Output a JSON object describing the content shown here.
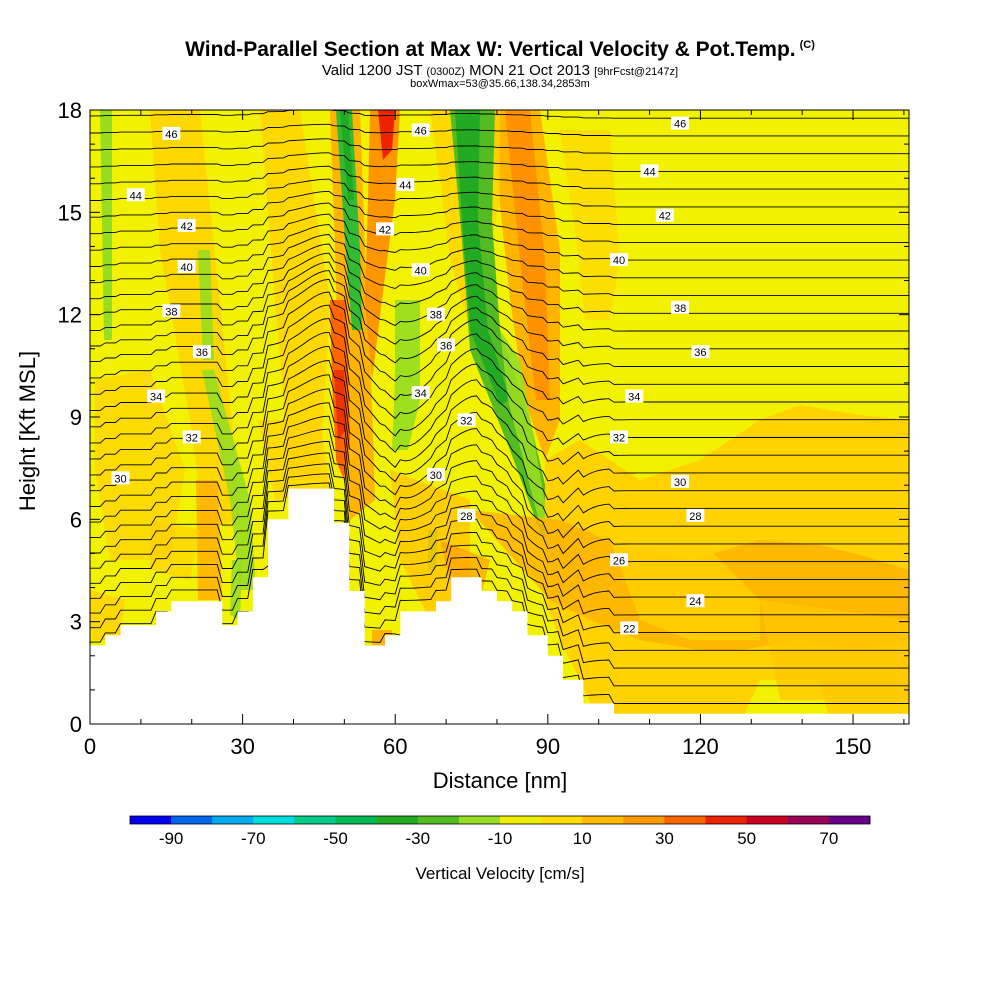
{
  "header": {
    "title": "Wind-Parallel Section at Max W: Vertical Velocity & Pot.Temp.",
    "copyright": "(C)",
    "valid_prefix": "Valid 1200 JST",
    "valid_zulu": "(0300Z)",
    "valid_date": "MON 21 Oct 2013",
    "forecast_info": "[9hrFcst@2147z]",
    "box_info": "boxWmax=53@35.66,138.34,2853m"
  },
  "chart_data": {
    "type": "heatmap",
    "xlabel": "Distance [nm]",
    "ylabel": "Height [Kft MSL]",
    "xlim": [
      0,
      161
    ],
    "ylim": [
      0,
      18
    ],
    "x_ticks": [
      0,
      30,
      60,
      90,
      120,
      150
    ],
    "y_ticks": [
      0,
      3,
      6,
      9,
      12,
      15,
      18
    ],
    "terrain": [
      [
        0,
        2.3
      ],
      [
        3,
        2.3
      ],
      [
        3,
        2.6
      ],
      [
        6,
        2.6
      ],
      [
        6,
        2.9
      ],
      [
        13,
        2.9
      ],
      [
        13,
        3.3
      ],
      [
        16,
        3.3
      ],
      [
        16,
        3.6
      ],
      [
        26,
        3.6
      ],
      [
        26,
        2.9
      ],
      [
        29,
        2.9
      ],
      [
        29,
        3.3
      ],
      [
        32,
        3.3
      ],
      [
        32,
        4.3
      ],
      [
        35,
        4.3
      ],
      [
        35,
        6.0
      ],
      [
        39,
        6.0
      ],
      [
        39,
        6.9
      ],
      [
        48,
        6.9
      ],
      [
        48,
        5.9
      ],
      [
        51,
        5.9
      ],
      [
        51,
        3.9
      ],
      [
        54,
        3.9
      ],
      [
        54,
        2.3
      ],
      [
        58,
        2.3
      ],
      [
        58,
        2.6
      ],
      [
        61,
        2.6
      ],
      [
        61,
        3.3
      ],
      [
        68,
        3.3
      ],
      [
        68,
        3.6
      ],
      [
        71,
        3.6
      ],
      [
        71,
        4.3
      ],
      [
        77,
        4.3
      ],
      [
        77,
        3.9
      ],
      [
        80,
        3.9
      ],
      [
        80,
        3.6
      ],
      [
        83,
        3.6
      ],
      [
        83,
        3.3
      ],
      [
        86,
        3.3
      ],
      [
        86,
        2.6
      ],
      [
        90,
        2.6
      ],
      [
        90,
        2.0
      ],
      [
        93,
        2.0
      ],
      [
        93,
        1.3
      ],
      [
        97,
        1.3
      ],
      [
        97,
        0.6
      ],
      [
        103,
        0.6
      ],
      [
        103,
        0.3
      ],
      [
        161,
        0.3
      ]
    ],
    "isentrope_labels": [
      {
        "text": "46",
        "x": 16,
        "y": 17.3
      },
      {
        "text": "44",
        "x": 9,
        "y": 15.5
      },
      {
        "text": "42",
        "x": 19,
        "y": 14.6
      },
      {
        "text": "40",
        "x": 19,
        "y": 13.4
      },
      {
        "text": "38",
        "x": 16,
        "y": 12.1
      },
      {
        "text": "36",
        "x": 22,
        "y": 10.9
      },
      {
        "text": "34",
        "x": 13,
        "y": 9.6
      },
      {
        "text": "32",
        "x": 20,
        "y": 8.4
      },
      {
        "text": "30",
        "x": 6,
        "y": 7.2
      },
      {
        "text": "46",
        "x": 65,
        "y": 17.4
      },
      {
        "text": "44",
        "x": 62,
        "y": 15.8
      },
      {
        "text": "42",
        "x": 58,
        "y": 14.5
      },
      {
        "text": "40",
        "x": 65,
        "y": 13.3
      },
      {
        "text": "38",
        "x": 68,
        "y": 12.0
      },
      {
        "text": "36",
        "x": 70,
        "y": 11.1
      },
      {
        "text": "34",
        "x": 65,
        "y": 9.7
      },
      {
        "text": "32",
        "x": 74,
        "y": 8.9
      },
      {
        "text": "30",
        "x": 68,
        "y": 7.3
      },
      {
        "text": "28",
        "x": 74,
        "y": 6.1
      },
      {
        "text": "46",
        "x": 116,
        "y": 17.6
      },
      {
        "text": "44",
        "x": 110,
        "y": 16.2
      },
      {
        "text": "42",
        "x": 113,
        "y": 14.9
      },
      {
        "text": "40",
        "x": 104,
        "y": 13.6
      },
      {
        "text": "38",
        "x": 116,
        "y": 12.2
      },
      {
        "text": "36",
        "x": 120,
        "y": 10.9
      },
      {
        "text": "34",
        "x": 107,
        "y": 9.6
      },
      {
        "text": "32",
        "x": 104,
        "y": 8.4
      },
      {
        "text": "30",
        "x": 116,
        "y": 7.1
      },
      {
        "text": "28",
        "x": 119,
        "y": 6.1
      },
      {
        "text": "26",
        "x": 104,
        "y": 4.8
      },
      {
        "text": "24",
        "x": 119,
        "y": 3.6
      },
      {
        "text": "22",
        "x": 106,
        "y": 2.8
      }
    ],
    "colorbar": {
      "label": "Vertical Velocity [cm/s]",
      "ticks": [
        "-90",
        "-70",
        "-50",
        "-30",
        "-10",
        "10",
        "30",
        "50",
        "70"
      ],
      "range": [
        -100,
        80
      ],
      "step": 10,
      "colors": [
        "#0000ee",
        "#0066ee",
        "#00aaee",
        "#00dddd",
        "#00cc88",
        "#00bb55",
        "#22aa22",
        "#55bb22",
        "#99dd22",
        "#eeee00",
        "#ffdd00",
        "#ffbb00",
        "#ff9900",
        "#ff6600",
        "#ee2200",
        "#cc0022",
        "#990055",
        "#660088"
      ]
    }
  }
}
